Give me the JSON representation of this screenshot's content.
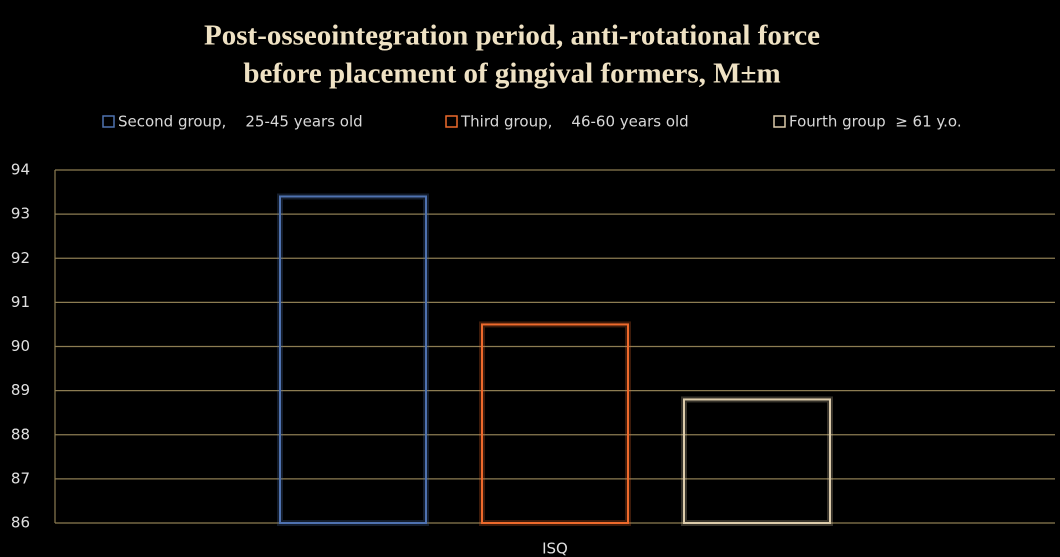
{
  "chart_data": {
    "type": "bar",
    "title": [
      "Post-osseointegration period, anti-rotational force",
      "before placement of gingival formers, M±m"
    ],
    "categories": [
      "ISQ"
    ],
    "series": [
      {
        "name": "Second group,    25-45 years old",
        "color": "#4f72b0",
        "values": [
          93.4
        ]
      },
      {
        "name": "Third group,    46-60 years old",
        "color": "#ee6a2c",
        "values": [
          90.5
        ]
      },
      {
        "name": "Fourth group  ≥ 61 y.o.",
        "color": "#dccbaa",
        "values": [
          88.8
        ]
      }
    ],
    "ylim": [
      86,
      94
    ],
    "yticks": [
      86,
      87,
      88,
      89,
      90,
      91,
      92,
      93,
      94
    ],
    "grid": true,
    "legend": "top"
  }
}
